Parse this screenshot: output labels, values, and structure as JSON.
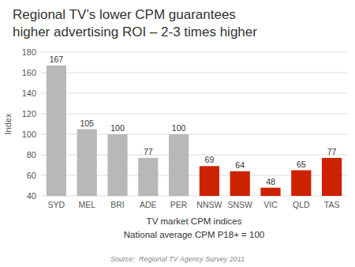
{
  "chart_data": {
    "type": "bar",
    "title": "Regional TV’s lower CPM guarantees",
    "subtitle": "higher advertising ROI – 2-3 times higher",
    "categories": [
      "SYD",
      "MEL",
      "BRI",
      "ADE",
      "PER",
      "NNSW",
      "SNSW",
      "VIC",
      "QLD",
      "TAS"
    ],
    "values": [
      167,
      105,
      100,
      77,
      100,
      69,
      64,
      48,
      65,
      77
    ],
    "colors": [
      "#b8b8b8",
      "#b8b8b8",
      "#b8b8b8",
      "#b8b8b8",
      "#b8b8b8",
      "#cc2200",
      "#cc2200",
      "#cc2200",
      "#cc2200",
      "#cc2200"
    ],
    "xlabel": "TV market CPM indices",
    "annotations": [
      "National average CPM P18+ = 100"
    ],
    "ylabel": "Index",
    "source": "Source:  Regional TV Agency Survey 2011",
    "ylim": [
      40,
      180
    ],
    "yticks": [
      40,
      60,
      80,
      100,
      120,
      140,
      160,
      180
    ],
    "grid": true,
    "data_labels": true
  }
}
